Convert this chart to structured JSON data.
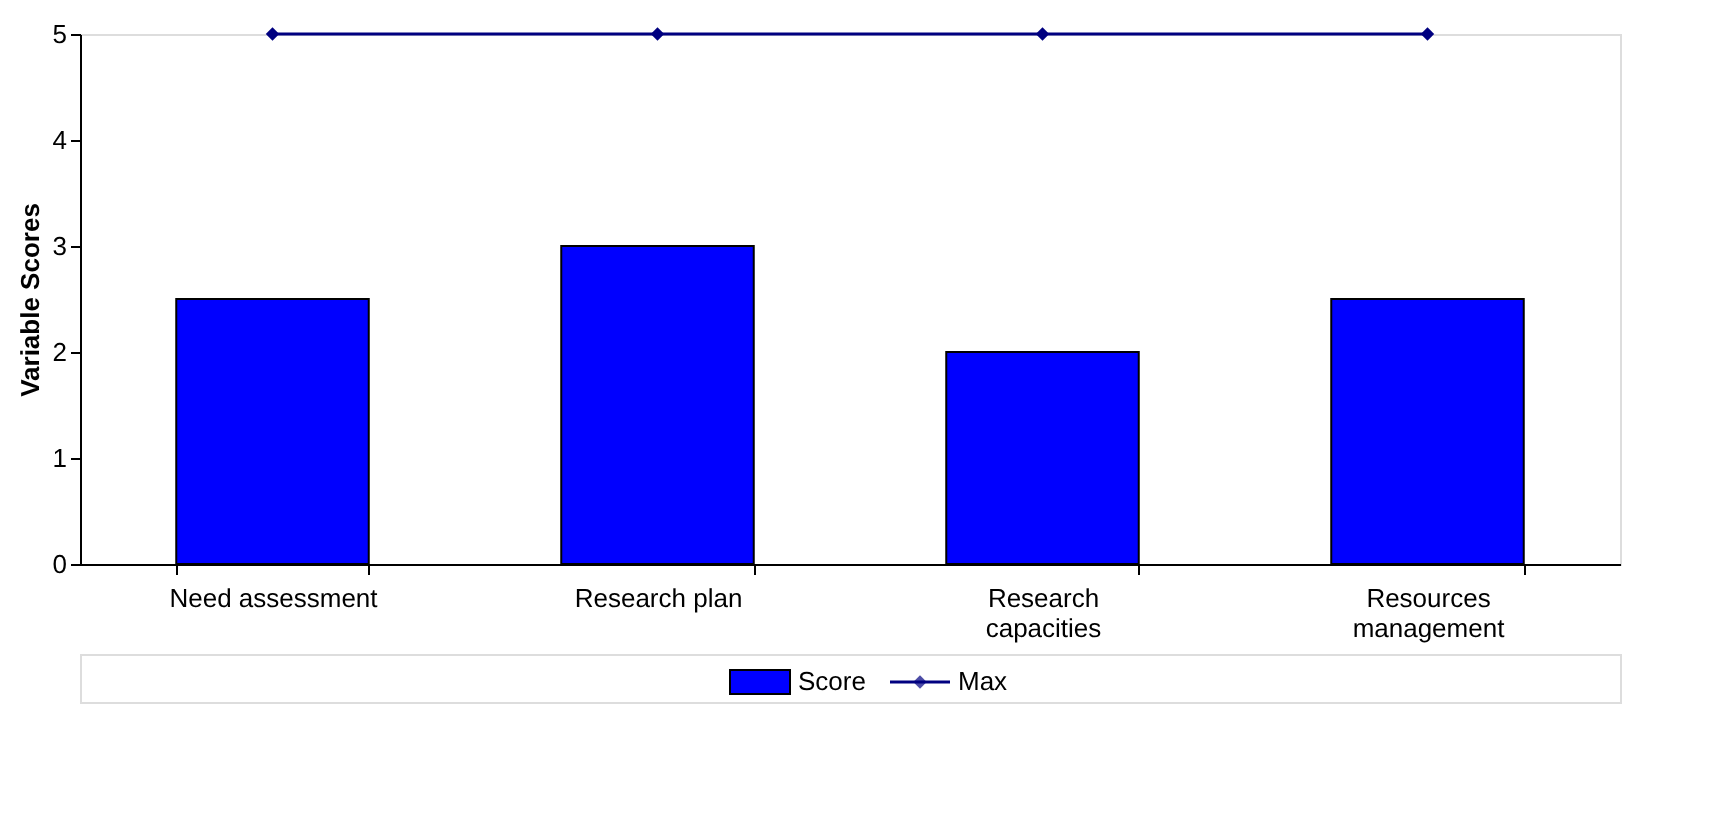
{
  "chart_data": {
    "type": "bar",
    "ylabel": "Variable Scores",
    "categories": [
      "Need assessment",
      "Research plan",
      "Research capacities",
      "Resources management"
    ],
    "series": [
      {
        "name": "Score",
        "color": "#0000ff",
        "values": [
          2.5,
          3,
          2,
          2.5
        ]
      },
      {
        "name": "Max",
        "type": "line",
        "marker": "diamond",
        "color": "#000080",
        "values": [
          5,
          5,
          5,
          5
        ]
      }
    ],
    "ylim": [
      0,
      5
    ],
    "yticks": [
      0,
      1,
      2,
      3,
      4,
      5
    ],
    "grid": false,
    "legend": "bottom"
  }
}
